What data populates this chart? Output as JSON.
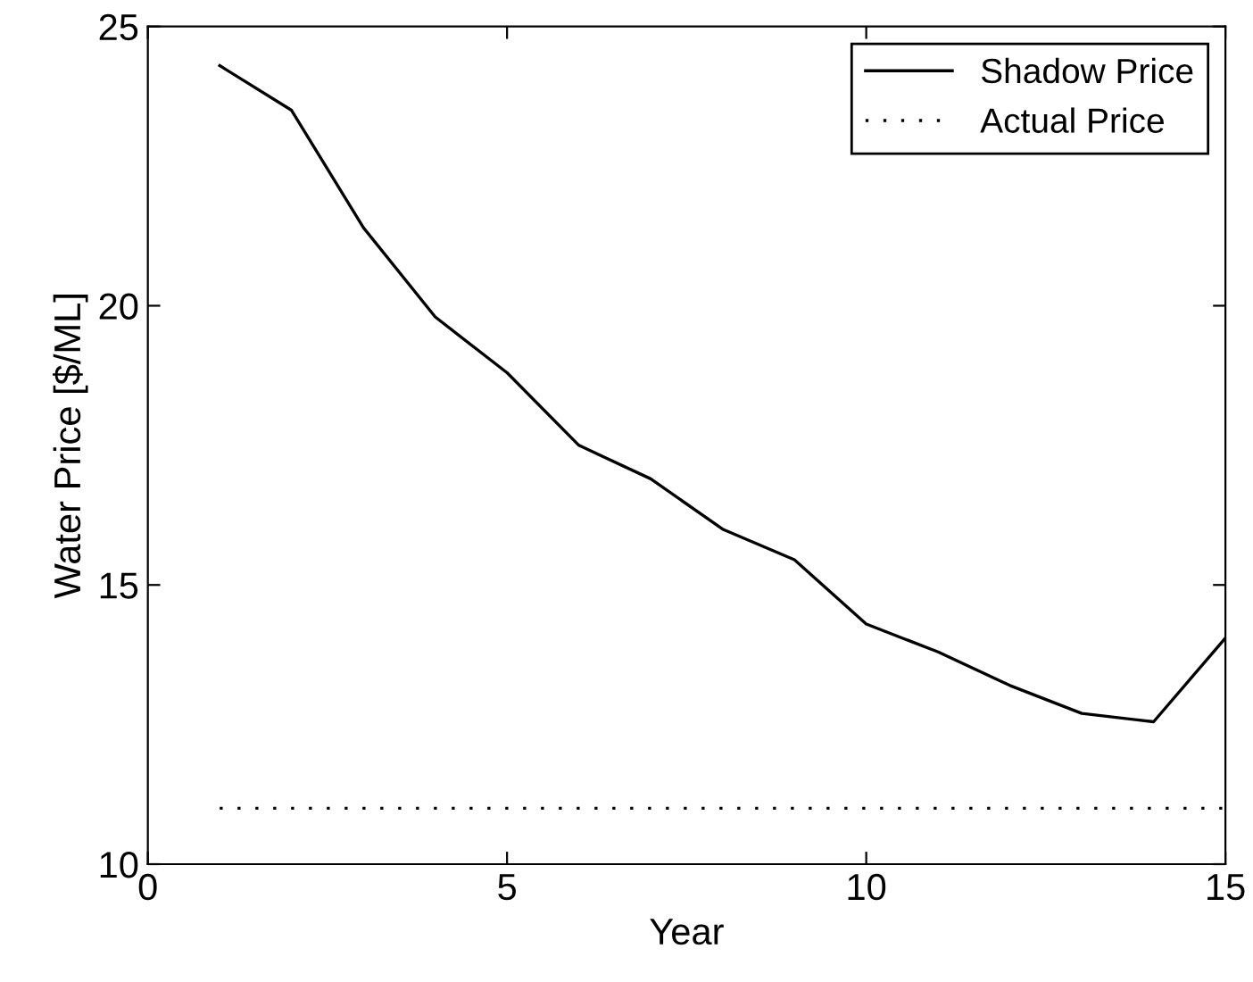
{
  "chart_data": {
    "type": "line",
    "xlabel": "Year",
    "ylabel": "Water Price [$/ML]",
    "x": [
      1,
      2,
      3,
      4,
      5,
      6,
      7,
      8,
      9,
      10,
      11,
      12,
      13,
      14,
      15
    ],
    "series": [
      {
        "name": "Shadow Price",
        "color": "#000000",
        "line_style": "solid",
        "values": [
          24.3,
          23.5,
          21.4,
          19.8,
          18.8,
          17.5,
          16.9,
          16.0,
          15.45,
          14.3,
          13.8,
          13.2,
          12.7,
          12.55,
          14.05
        ]
      },
      {
        "name": "Actual Price",
        "color": "#000000",
        "line_style": "dotted",
        "values": [
          11,
          11,
          11,
          11,
          11,
          11,
          11,
          11,
          11,
          11,
          11,
          11,
          11,
          11,
          11
        ]
      }
    ],
    "xlim": [
      0,
      15
    ],
    "xticks": [
      0,
      5,
      10,
      15
    ],
    "ylim": [
      10,
      25
    ],
    "yticks": [
      10,
      15,
      20,
      25
    ],
    "grid": false,
    "legend": "top right",
    "marker": "none"
  }
}
